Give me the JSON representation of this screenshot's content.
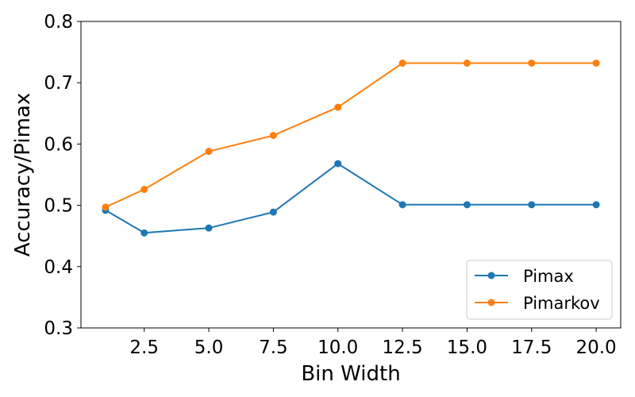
{
  "chart_data": {
    "type": "line",
    "title": "",
    "xlabel": "Bin Width",
    "ylabel": "Accuracy/Pimax",
    "xlim": [
      0.05,
      20.95
    ],
    "ylim": [
      0.3,
      0.8
    ],
    "xticks": [
      2.5,
      5.0,
      7.5,
      10.0,
      12.5,
      15.0,
      17.5,
      20.0
    ],
    "xtick_labels": [
      "2.5",
      "5.0",
      "7.5",
      "10.0",
      "12.5",
      "15.0",
      "17.5",
      "20.0"
    ],
    "yticks": [
      0.3,
      0.4,
      0.5,
      0.6,
      0.7,
      0.8
    ],
    "ytick_labels": [
      "0.3",
      "0.4",
      "0.5",
      "0.6",
      "0.7",
      "0.8"
    ],
    "grid": false,
    "legend_position": "lower-right",
    "x": [
      1,
      2.5,
      5,
      7.5,
      10,
      12.5,
      15,
      17.5,
      20
    ],
    "series": [
      {
        "name": "Pimax",
        "color": "#1f77b4",
        "marker": "circle",
        "values": [
          0.492,
          0.455,
          0.463,
          0.489,
          0.568,
          0.501,
          0.501,
          0.501,
          0.501
        ]
      },
      {
        "name": "Pimarkov",
        "color": "#ff7f0e",
        "marker": "circle",
        "values": [
          0.497,
          0.526,
          0.588,
          0.614,
          0.66,
          0.732,
          0.732,
          0.732,
          0.732
        ]
      }
    ]
  }
}
